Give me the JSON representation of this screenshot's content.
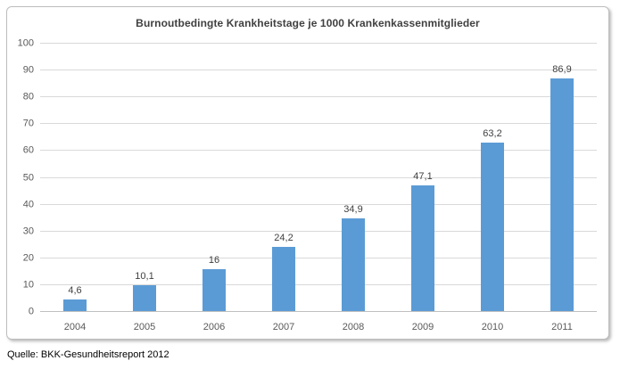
{
  "source_note": "Quelle: BKK-Gesundheitsreport 2012",
  "chart_data": {
    "type": "bar",
    "title": "Burnoutbedingte Krankheitstage je 1000 Krankenkassenmitglieder",
    "categories": [
      "2004",
      "2005",
      "2006",
      "2007",
      "2008",
      "2009",
      "2010",
      "2011"
    ],
    "values": [
      4.6,
      10.1,
      16,
      24.2,
      34.9,
      47.1,
      63.2,
      86.9
    ],
    "value_labels": [
      "4,6",
      "10,1",
      "16",
      "24,2",
      "34,9",
      "47,1",
      "63,2",
      "86,9"
    ],
    "xlabel": "",
    "ylabel": "",
    "ylim": [
      0,
      100
    ],
    "ytick_step": 10,
    "ytick_labels": [
      "0",
      "10",
      "20",
      "30",
      "40",
      "50",
      "60",
      "70",
      "80",
      "90",
      "100"
    ],
    "grid": "horizontal",
    "legend_position": "none",
    "bar_color": "#5b9bd5",
    "gridline_color": "#d9d9d9",
    "axis_line_color": "#bfbfbf",
    "title_color": "#404040",
    "tick_label_color": "#595959",
    "value_label_color": "#404040"
  }
}
